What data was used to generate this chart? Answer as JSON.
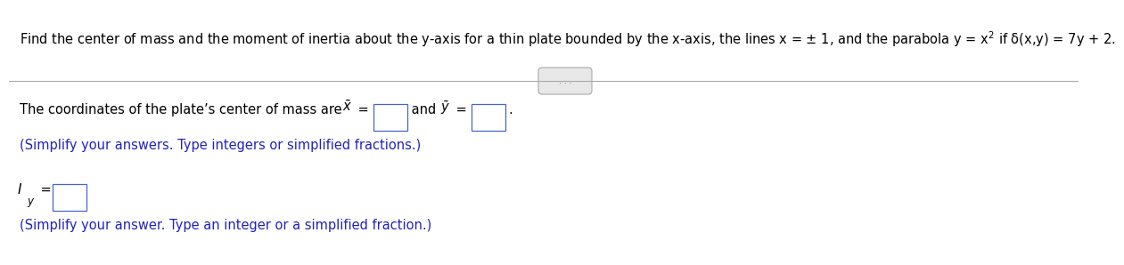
{
  "bg_color": "#ffffff",
  "text_color": "#000000",
  "blue_color": "#2222bb",
  "gray_color": "#888888",
  "title": "Find the center of mass and the moment of inertia about the y-axis for a thin plate bounded by the x-axis, the lines x = ± 1, and the parabola y = x$^2$ if δ(x,y) = 7y + 2.",
  "line1_prefix": "The coordinates of the plate’s center of mass are ",
  "line1_xbar": "$\\bar{x}$",
  "line1_eq1": " = ",
  "line1_and": " and ",
  "line1_ybar": "$\\bar{y}$",
  "line1_eq2": " = ",
  "line1_end": ".",
  "line2": "(Simplify your answers. Type integers or simplified fractions.)",
  "line3_I": "I",
  "line3_y": "y",
  "line3_eq": " = ",
  "line4": "(Simplify your answer. Type an integer or a simplified fraction.)",
  "title_fontsize": 10.5,
  "body_fontsize": 10.5,
  "small_fontsize": 8.5,
  "box_color": "#4466cc",
  "divider_color": "#aaaaaa",
  "dots_bg": "#e8e8e8",
  "dots_color": "#555555"
}
